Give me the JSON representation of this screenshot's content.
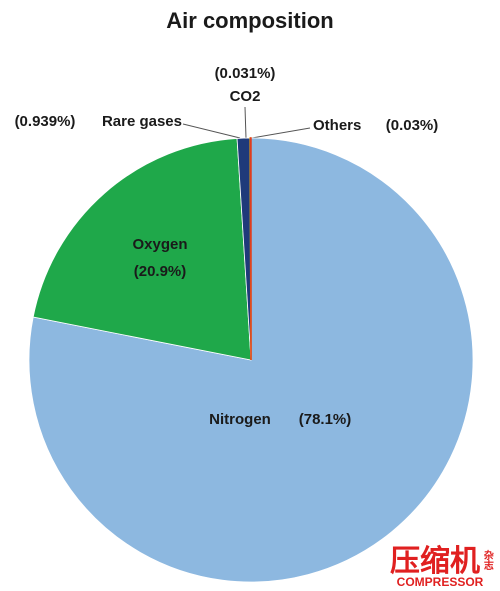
{
  "chart_data": {
    "type": "pie",
    "title": "Air composition",
    "categories": [
      "Nitrogen",
      "Oxygen",
      "Rare gases",
      "CO2",
      "Others"
    ],
    "values": [
      78.1,
      20.9,
      0.939,
      0.031,
      0.03
    ],
    "value_labels": [
      "(78.1%)",
      "(20.9%)",
      "(0.939%)",
      "(0.031%)",
      "(0.03%)"
    ],
    "colors": [
      "#8db8e0",
      "#1fa84a",
      "#1f3a7a",
      "#f5b800",
      "#e03c1e"
    ]
  },
  "watermark": {
    "brand": "压缩机",
    "sub": "COMPRESSOR",
    "tag": "杂志"
  }
}
